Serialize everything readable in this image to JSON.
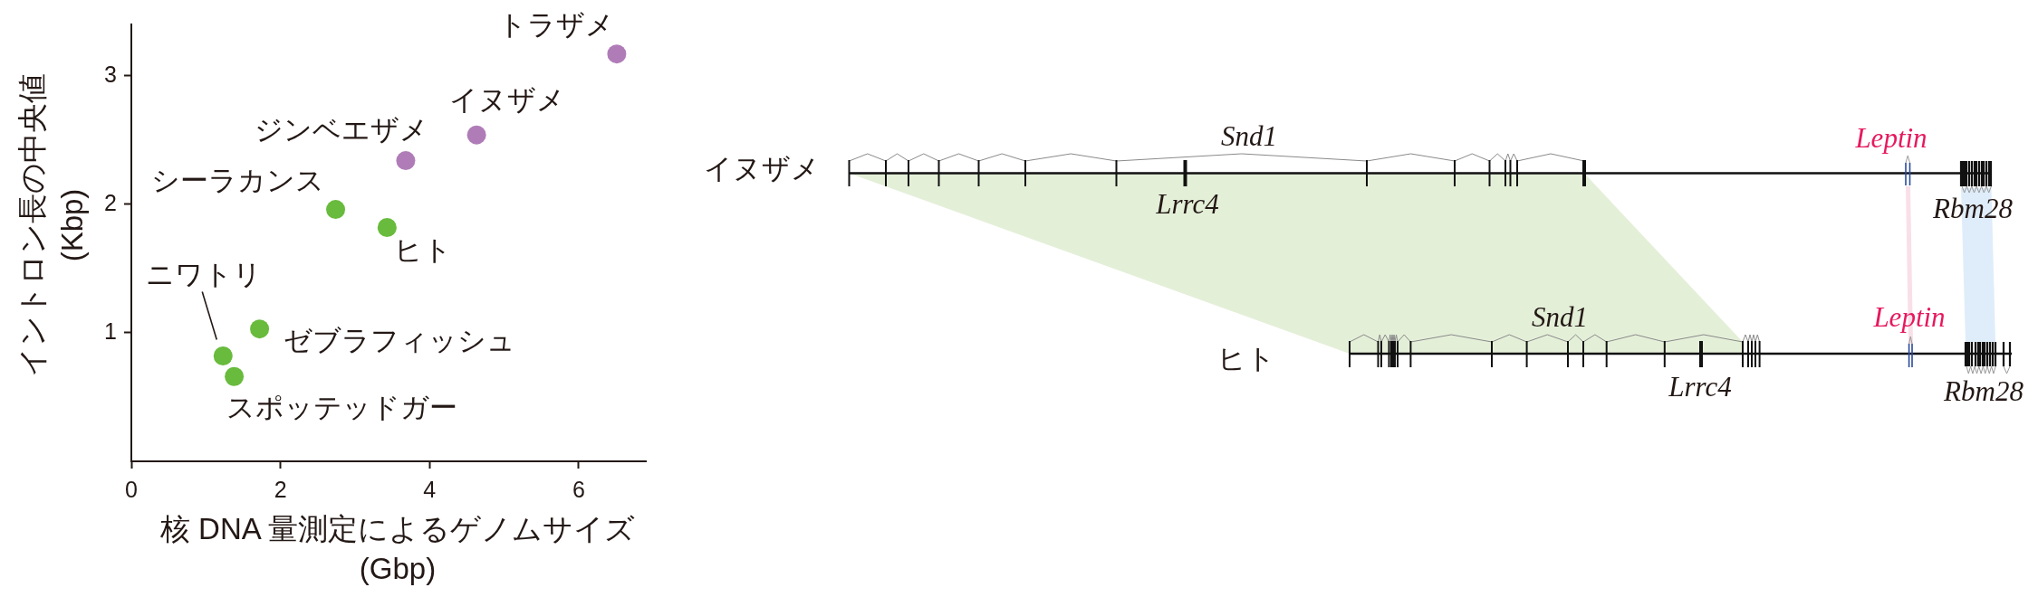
{
  "chart_data": [
    {
      "type": "scatter",
      "xlabel": "核 DNA 量測定によるゲノムサイズ\n(Gbp)",
      "ylabel": "イントロン長の中央値\n(Kbp)",
      "xlim": [
        0,
        6.9
      ],
      "ylim": [
        0,
        3.4
      ],
      "xticks": [
        0,
        2,
        4,
        6
      ],
      "yticks": [
        1,
        2,
        3
      ],
      "marker": "circle",
      "series": [
        {
          "color": "#68bb3c",
          "x": [
            1.23,
            1.38,
            1.72,
            2.74,
            3.43
          ],
          "values": [
            0.82,
            0.66,
            1.03,
            1.96,
            1.82
          ]
        },
        {
          "color": "#b07cb8",
          "x": [
            3.68,
            4.63,
            6.51
          ],
          "values": [
            2.34,
            2.54,
            3.17
          ]
        }
      ],
      "annotations": [
        {
          "text": "ニワトリ",
          "x": 1.23,
          "y": 0.82
        },
        {
          "text": "スポッテッドガー",
          "x": 1.38,
          "y": 0.66
        },
        {
          "text": "ゼブラフィッシュ",
          "x": 1.72,
          "y": 1.03
        },
        {
          "text": "シーラカンス",
          "x": 2.74,
          "y": 1.96
        },
        {
          "text": "ヒト",
          "x": 3.43,
          "y": 1.82
        },
        {
          "text": "ジンベエザメ",
          "x": 3.68,
          "y": 2.34
        },
        {
          "text": "イヌザメ",
          "x": 4.63,
          "y": 2.54
        },
        {
          "text": "トラザメ",
          "x": 6.51,
          "y": 3.17
        }
      ]
    },
    {
      "type": "other",
      "annotations": [
        "イヌザメ",
        "ヒト",
        "Snd1",
        "Lrrc4",
        "Leptin",
        "Rbm28",
        "Snd1",
        "Lrrc4",
        "Leptin",
        "Rbm28"
      ]
    }
  ]
}
